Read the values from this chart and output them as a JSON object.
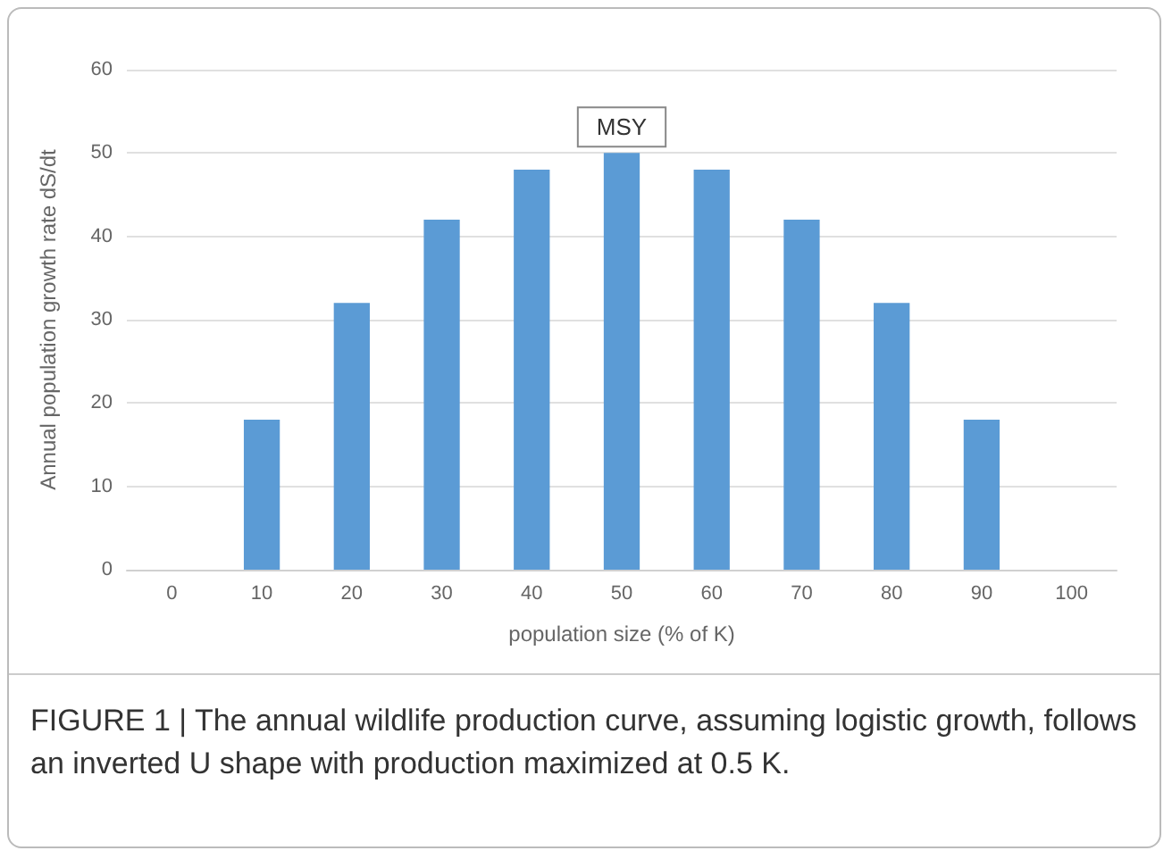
{
  "chart_data": {
    "type": "bar",
    "categories": [
      "0",
      "10",
      "20",
      "30",
      "40",
      "50",
      "60",
      "70",
      "80",
      "90",
      "100"
    ],
    "values": [
      0,
      18,
      32,
      42,
      48,
      50,
      48,
      42,
      32,
      18,
      0
    ],
    "color": "#5b9bd5",
    "xlabel": "population size (% of K)",
    "ylabel": "Annual population growth rate dS/dt",
    "ylim": [
      0,
      60
    ],
    "yticks": [
      0,
      10,
      20,
      30,
      40,
      50,
      60
    ],
    "grid": "y",
    "annotations": [
      {
        "text": "MSY",
        "x": "50",
        "y": 50
      },
      "FIGURE 1 | The annual wildlife production curve, assuming logistic growth, follows an inverted U shape with production maximized at 0.5 K."
    ]
  }
}
